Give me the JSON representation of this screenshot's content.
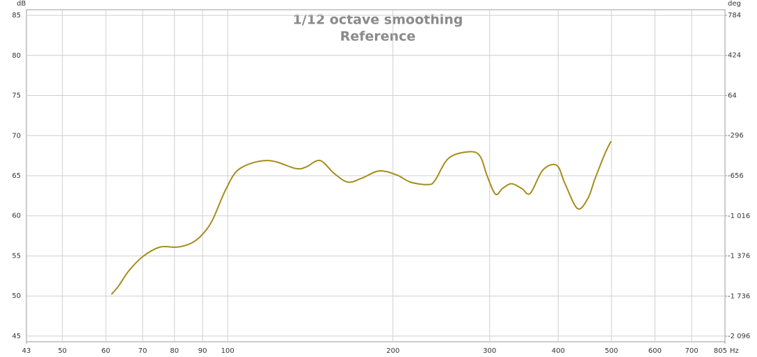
{
  "chart_data": {
    "type": "line",
    "title": "1/12 octave smoothing",
    "subtitle": "Reference",
    "y_label": "dB",
    "y2_label": "deg",
    "x_label": "Hz",
    "xscale": "log",
    "grid": true,
    "xlim": [
      43,
      805
    ],
    "xticks": [
      43,
      50,
      60,
      70,
      80,
      90,
      100,
      200,
      300,
      400,
      500,
      600,
      700,
      805
    ],
    "ylim": [
      44.3,
      85.7
    ],
    "yticks": [
      45,
      50,
      55,
      60,
      65,
      70,
      75,
      80,
      85
    ],
    "y2lim": [
      -2145.7,
      833.7
    ],
    "y2ticks": [
      {
        "value": -2096,
        "label": "-2 096"
      },
      {
        "value": -1736,
        "label": "-1 736"
      },
      {
        "value": -1376,
        "label": "-1 376"
      },
      {
        "value": -1016,
        "label": "-1 016"
      },
      -656,
      -296,
      64,
      424,
      784
    ],
    "x": [
      61.4,
      63.2,
      66.0,
      70.0,
      75.3,
      81.0,
      85.9,
      89.7,
      93.7,
      99.4,
      105.3,
      118.4,
      133.0,
      139.0,
      147.3,
      156.2,
      165.6,
      175.6,
      188.8,
      203.1,
      215.3,
      231.6,
      238.5,
      252.8,
      276.0,
      288.4,
      296.8,
      307.4,
      316.5,
      328.7,
      343.4,
      355.7,
      374.9,
      397.4,
      411.6,
      433.8,
      453.2,
      466.6,
      487.6,
      499.2
    ],
    "series": [
      {
        "name": "Reference",
        "color": "#a68c1c",
        "values": [
          50.2,
          51.2,
          53.1,
          54.9,
          56.1,
          56.1,
          56.6,
          57.6,
          59.4,
          63.4,
          65.9,
          66.9,
          65.9,
          66.1,
          66.9,
          65.3,
          64.2,
          64.7,
          65.6,
          65.1,
          64.2,
          63.9,
          64.4,
          67.2,
          68.0,
          67.4,
          65.0,
          62.7,
          63.4,
          64.0,
          63.4,
          62.8,
          65.7,
          66.3,
          64.0,
          60.9,
          62.2,
          64.6,
          67.9,
          69.3
        ]
      }
    ]
  }
}
